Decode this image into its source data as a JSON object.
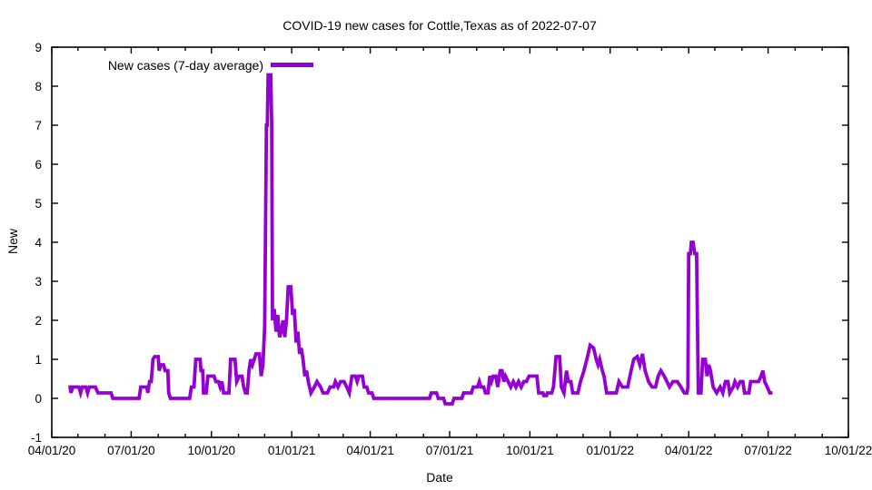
{
  "header": {
    "title": "COVID-19 new cases for Cottle,Texas as of 2022-07-07"
  },
  "colors": {
    "line": "#9400d3",
    "axis": "#000000",
    "background": "#ffffff"
  },
  "chart_data": {
    "type": "line",
    "title": "COVID-19 new cases for Cottle,Texas as of 2022-07-07",
    "xlabel": "Date",
    "ylabel": "New",
    "grid": false,
    "legend": {
      "position": "top-left-inside",
      "entries": [
        {
          "label": "New cases (7-day average)",
          "color": "#9400d3"
        }
      ]
    },
    "xlim": [
      "2020-04-01",
      "2022-10-01"
    ],
    "ylim": [
      -1,
      9
    ],
    "y_ticks": [
      -1,
      0,
      1,
      2,
      3,
      4,
      5,
      6,
      7,
      8,
      9
    ],
    "x_ticks": [
      {
        "date": "2020-04-01",
        "label": "04/01/20"
      },
      {
        "date": "2020-07-01",
        "label": "07/01/20"
      },
      {
        "date": "2020-10-01",
        "label": "10/01/20"
      },
      {
        "date": "2021-01-01",
        "label": "01/01/21"
      },
      {
        "date": "2021-04-01",
        "label": "04/01/21"
      },
      {
        "date": "2021-07-01",
        "label": "07/01/21"
      },
      {
        "date": "2021-10-01",
        "label": "10/01/21"
      },
      {
        "date": "2022-01-01",
        "label": "01/01/22"
      },
      {
        "date": "2022-04-01",
        "label": "04/01/22"
      },
      {
        "date": "2022-07-01",
        "label": "07/01/22"
      },
      {
        "date": "2022-10-01",
        "label": "10/01/22"
      }
    ],
    "x_minor_ticks": "monthly",
    "series": [
      {
        "name": "New cases (7-day average)",
        "color": "#9400d3",
        "points": [
          [
            "2020-04-20",
            0.29
          ],
          [
            "2020-04-22",
            0.29
          ],
          [
            "2020-04-23",
            0.14
          ],
          [
            "2020-04-25",
            0.29
          ],
          [
            "2020-05-02",
            0.29
          ],
          [
            "2020-05-04",
            0.14
          ],
          [
            "2020-05-06",
            0.29
          ],
          [
            "2020-05-10",
            0.29
          ],
          [
            "2020-05-12",
            0.14
          ],
          [
            "2020-05-14",
            0.29
          ],
          [
            "2020-05-21",
            0.29
          ],
          [
            "2020-05-24",
            0.14
          ],
          [
            "2020-06-08",
            0.14
          ],
          [
            "2020-06-10",
            0.0
          ],
          [
            "2020-07-10",
            0.0
          ],
          [
            "2020-07-12",
            0.29
          ],
          [
            "2020-07-19",
            0.29
          ],
          [
            "2020-07-20",
            0.14
          ],
          [
            "2020-07-22",
            0.43
          ],
          [
            "2020-07-24",
            0.43
          ],
          [
            "2020-07-26",
            1.0
          ],
          [
            "2020-07-28",
            1.07
          ],
          [
            "2020-08-01",
            1.07
          ],
          [
            "2020-08-02",
            0.71
          ],
          [
            "2020-08-04",
            0.86
          ],
          [
            "2020-08-07",
            0.86
          ],
          [
            "2020-08-09",
            0.71
          ],
          [
            "2020-08-12",
            0.71
          ],
          [
            "2020-08-13",
            0.14
          ],
          [
            "2020-08-15",
            0.0
          ],
          [
            "2020-09-06",
            0.0
          ],
          [
            "2020-09-08",
            0.29
          ],
          [
            "2020-09-11",
            0.29
          ],
          [
            "2020-09-13",
            1.0
          ],
          [
            "2020-09-18",
            1.0
          ],
          [
            "2020-09-19",
            0.71
          ],
          [
            "2020-09-21",
            0.71
          ],
          [
            "2020-09-22",
            0.14
          ],
          [
            "2020-09-25",
            0.14
          ],
          [
            "2020-09-27",
            0.57
          ],
          [
            "2020-10-04",
            0.57
          ],
          [
            "2020-10-06",
            0.43
          ],
          [
            "2020-10-09",
            0.43
          ],
          [
            "2020-10-11",
            0.29
          ],
          [
            "2020-10-13",
            0.43
          ],
          [
            "2020-10-15",
            0.14
          ],
          [
            "2020-10-21",
            0.14
          ],
          [
            "2020-10-23",
            1.0
          ],
          [
            "2020-10-28",
            1.0
          ],
          [
            "2020-10-30",
            0.43
          ],
          [
            "2020-11-02",
            0.57
          ],
          [
            "2020-11-05",
            0.57
          ],
          [
            "2020-11-07",
            0.29
          ],
          [
            "2020-11-09",
            0.14
          ],
          [
            "2020-11-11",
            0.14
          ],
          [
            "2020-11-13",
            0.71
          ],
          [
            "2020-11-15",
            1.0
          ],
          [
            "2020-11-17",
            0.86
          ],
          [
            "2020-11-19",
            1.0
          ],
          [
            "2020-11-21",
            1.14
          ],
          [
            "2020-11-25",
            1.14
          ],
          [
            "2020-11-27",
            0.57
          ],
          [
            "2020-11-29",
            0.86
          ],
          [
            "2020-12-01",
            1.86
          ],
          [
            "2020-12-03",
            7.0
          ],
          [
            "2020-12-04",
            7.0
          ],
          [
            "2020-12-05",
            8.29
          ],
          [
            "2020-12-08",
            8.29
          ],
          [
            "2020-12-09",
            7.0
          ],
          [
            "2020-12-10",
            2.0
          ],
          [
            "2020-12-12",
            2.29
          ],
          [
            "2020-12-14",
            1.71
          ],
          [
            "2020-12-16",
            2.14
          ],
          [
            "2020-12-18",
            1.57
          ],
          [
            "2020-12-20",
            1.71
          ],
          [
            "2020-12-22",
            2.0
          ],
          [
            "2020-12-24",
            1.57
          ],
          [
            "2020-12-26",
            2.0
          ],
          [
            "2020-12-28",
            2.86
          ],
          [
            "2020-12-31",
            2.86
          ],
          [
            "2021-01-02",
            2.14
          ],
          [
            "2021-01-04",
            2.29
          ],
          [
            "2021-01-06",
            1.43
          ],
          [
            "2021-01-08",
            1.71
          ],
          [
            "2021-01-10",
            1.14
          ],
          [
            "2021-01-12",
            1.29
          ],
          [
            "2021-01-14",
            1.0
          ],
          [
            "2021-01-16",
            0.57
          ],
          [
            "2021-01-18",
            0.71
          ],
          [
            "2021-01-20",
            0.43
          ],
          [
            "2021-01-23",
            0.14
          ],
          [
            "2021-01-27",
            0.29
          ],
          [
            "2021-01-30",
            0.43
          ],
          [
            "2021-02-03",
            0.29
          ],
          [
            "2021-02-06",
            0.14
          ],
          [
            "2021-02-11",
            0.14
          ],
          [
            "2021-02-14",
            0.29
          ],
          [
            "2021-02-18",
            0.29
          ],
          [
            "2021-02-20",
            0.43
          ],
          [
            "2021-02-23",
            0.29
          ],
          [
            "2021-02-26",
            0.43
          ],
          [
            "2021-03-02",
            0.43
          ],
          [
            "2021-03-05",
            0.29
          ],
          [
            "2021-03-08",
            0.14
          ],
          [
            "2021-03-11",
            0.57
          ],
          [
            "2021-03-15",
            0.57
          ],
          [
            "2021-03-17",
            0.43
          ],
          [
            "2021-03-19",
            0.57
          ],
          [
            "2021-03-23",
            0.57
          ],
          [
            "2021-03-25",
            0.29
          ],
          [
            "2021-03-28",
            0.29
          ],
          [
            "2021-03-30",
            0.14
          ],
          [
            "2021-04-03",
            0.14
          ],
          [
            "2021-04-05",
            0.0
          ],
          [
            "2021-06-08",
            0.0
          ],
          [
            "2021-06-10",
            0.14
          ],
          [
            "2021-06-16",
            0.14
          ],
          [
            "2021-06-18",
            0.0
          ],
          [
            "2021-06-24",
            0.0
          ],
          [
            "2021-06-26",
            -0.14
          ],
          [
            "2021-07-04",
            -0.14
          ],
          [
            "2021-07-06",
            0.0
          ],
          [
            "2021-07-15",
            0.0
          ],
          [
            "2021-07-17",
            0.14
          ],
          [
            "2021-07-26",
            0.14
          ],
          [
            "2021-07-28",
            0.29
          ],
          [
            "2021-08-02",
            0.29
          ],
          [
            "2021-08-04",
            0.43
          ],
          [
            "2021-08-06",
            0.29
          ],
          [
            "2021-08-09",
            0.29
          ],
          [
            "2021-08-11",
            0.14
          ],
          [
            "2021-08-14",
            0.14
          ],
          [
            "2021-08-16",
            0.57
          ],
          [
            "2021-08-18",
            0.43
          ],
          [
            "2021-08-20",
            0.57
          ],
          [
            "2021-08-23",
            0.57
          ],
          [
            "2021-08-25",
            0.29
          ],
          [
            "2021-08-28",
            0.71
          ],
          [
            "2021-08-30",
            0.71
          ],
          [
            "2021-09-01",
            0.43
          ],
          [
            "2021-09-03",
            0.57
          ],
          [
            "2021-09-06",
            0.43
          ],
          [
            "2021-09-09",
            0.29
          ],
          [
            "2021-09-12",
            0.43
          ],
          [
            "2021-09-15",
            0.29
          ],
          [
            "2021-09-18",
            0.43
          ],
          [
            "2021-09-21",
            0.29
          ],
          [
            "2021-09-24",
            0.43
          ],
          [
            "2021-09-27",
            0.43
          ],
          [
            "2021-09-30",
            0.57
          ],
          [
            "2021-10-09",
            0.57
          ],
          [
            "2021-10-11",
            0.14
          ],
          [
            "2021-10-16",
            0.14
          ],
          [
            "2021-10-17",
            0.07
          ],
          [
            "2021-10-20",
            0.07
          ],
          [
            "2021-10-21",
            0.14
          ],
          [
            "2021-10-26",
            0.14
          ],
          [
            "2021-10-28",
            0.29
          ],
          [
            "2021-10-31",
            1.07
          ],
          [
            "2021-11-04",
            1.07
          ],
          [
            "2021-11-06",
            0.29
          ],
          [
            "2021-11-09",
            0.14
          ],
          [
            "2021-11-12",
            0.71
          ],
          [
            "2021-11-14",
            0.43
          ],
          [
            "2021-11-17",
            0.43
          ],
          [
            "2021-11-19",
            0.14
          ],
          [
            "2021-11-25",
            0.14
          ],
          [
            "2021-11-28",
            0.43
          ],
          [
            "2021-12-02",
            0.71
          ],
          [
            "2021-12-06",
            1.07
          ],
          [
            "2021-12-09",
            1.36
          ],
          [
            "2021-12-13",
            1.29
          ],
          [
            "2021-12-16",
            1.0
          ],
          [
            "2021-12-18",
            0.86
          ],
          [
            "2021-12-20",
            1.0
          ],
          [
            "2021-12-23",
            0.71
          ],
          [
            "2021-12-25",
            0.57
          ],
          [
            "2021-12-28",
            0.14
          ],
          [
            "2022-01-08",
            0.14
          ],
          [
            "2022-01-11",
            0.43
          ],
          [
            "2022-01-15",
            0.29
          ],
          [
            "2022-01-21",
            0.29
          ],
          [
            "2022-01-25",
            0.71
          ],
          [
            "2022-01-28",
            1.0
          ],
          [
            "2022-02-01",
            1.07
          ],
          [
            "2022-02-04",
            0.86
          ],
          [
            "2022-02-07",
            1.14
          ],
          [
            "2022-02-10",
            0.71
          ],
          [
            "2022-02-14",
            0.43
          ],
          [
            "2022-02-18",
            0.29
          ],
          [
            "2022-02-22",
            0.29
          ],
          [
            "2022-02-25",
            0.57
          ],
          [
            "2022-02-28",
            0.71
          ],
          [
            "2022-03-04",
            0.57
          ],
          [
            "2022-03-07",
            0.43
          ],
          [
            "2022-03-10",
            0.29
          ],
          [
            "2022-03-14",
            0.43
          ],
          [
            "2022-03-19",
            0.43
          ],
          [
            "2022-03-23",
            0.29
          ],
          [
            "2022-03-27",
            0.14
          ],
          [
            "2022-03-30",
            0.14
          ],
          [
            "2022-03-31",
            0.29
          ],
          [
            "2022-04-01",
            3.71
          ],
          [
            "2022-04-03",
            3.71
          ],
          [
            "2022-04-04",
            4.0
          ],
          [
            "2022-04-06",
            4.0
          ],
          [
            "2022-04-08",
            3.71
          ],
          [
            "2022-04-10",
            3.71
          ],
          [
            "2022-04-12",
            0.14
          ],
          [
            "2022-04-15",
            0.14
          ],
          [
            "2022-04-17",
            1.0
          ],
          [
            "2022-04-20",
            1.0
          ],
          [
            "2022-04-22",
            0.57
          ],
          [
            "2022-04-24",
            0.86
          ],
          [
            "2022-04-26",
            0.71
          ],
          [
            "2022-04-29",
            0.29
          ],
          [
            "2022-05-03",
            0.14
          ],
          [
            "2022-05-07",
            0.29
          ],
          [
            "2022-05-10",
            0.14
          ],
          [
            "2022-05-13",
            0.43
          ],
          [
            "2022-05-16",
            0.43
          ],
          [
            "2022-05-18",
            0.14
          ],
          [
            "2022-05-22",
            0.29
          ],
          [
            "2022-05-24",
            0.43
          ],
          [
            "2022-05-27",
            0.29
          ],
          [
            "2022-05-30",
            0.43
          ],
          [
            "2022-06-02",
            0.43
          ],
          [
            "2022-06-04",
            0.14
          ],
          [
            "2022-06-09",
            0.14
          ],
          [
            "2022-06-11",
            0.43
          ],
          [
            "2022-06-20",
            0.43
          ],
          [
            "2022-06-23",
            0.57
          ],
          [
            "2022-06-25",
            0.71
          ],
          [
            "2022-06-27",
            0.43
          ],
          [
            "2022-06-30",
            0.29
          ],
          [
            "2022-07-03",
            0.14
          ],
          [
            "2022-07-06",
            0.14
          ]
        ]
      }
    ]
  }
}
